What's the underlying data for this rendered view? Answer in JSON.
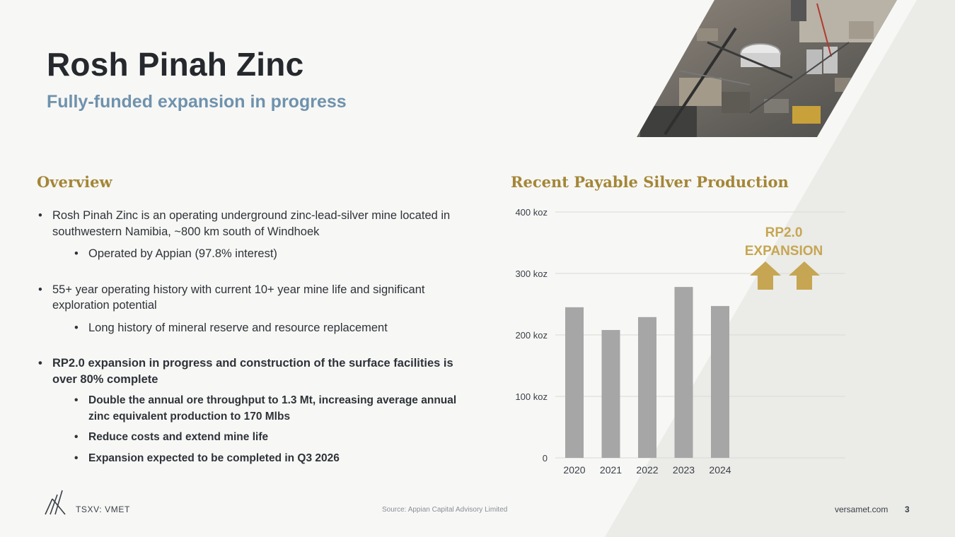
{
  "header": {
    "title": "Rosh Pinah Zinc",
    "subtitle": "Fully-funded expansion in progress"
  },
  "overview": {
    "heading": "Overview",
    "bullets": [
      {
        "text": "Rosh Pinah Zinc is an operating underground zinc-lead-silver mine located in southwestern Namibia, ~800 km south of Windhoek"
      },
      {
        "text": "Operated by Appian (97.8% interest)"
      },
      {
        "text": "55+ year operating history with current 10+ year mine life and significant exploration potential"
      },
      {
        "text": "Long history of mineral reserve and resource replacement"
      },
      {
        "text": "RP2.0 expansion in progress and construction of the surface facilities is over 80% complete"
      },
      {
        "text": "Double the annual ore throughput to 1.3 Mt, increasing average annual zinc equivalent production to 170 Mlbs"
      },
      {
        "text": "Reduce costs and extend mine life"
      },
      {
        "text": "Expansion expected to be completed in Q3 2026"
      }
    ]
  },
  "chart_data": {
    "type": "bar",
    "title": "Recent Payable Silver Production",
    "categories": [
      "2020",
      "2021",
      "2022",
      "2023",
      "2024"
    ],
    "values": [
      245,
      208,
      229,
      278,
      247
    ],
    "unit": "koz",
    "ylim": [
      0,
      400
    ],
    "yticks": [
      0,
      100,
      200,
      300,
      400
    ],
    "ytick_labels": [
      "0",
      "100 koz",
      "200 koz",
      "300 koz",
      "400 koz"
    ],
    "grid": true,
    "bar_color": "#a6a6a6",
    "annotation": {
      "line1": "RP2.0",
      "line2": "EXPANSION",
      "color": "#c6a653",
      "icon": "up-arrow-icon"
    }
  },
  "footer": {
    "ticker": "TSXV: VMET",
    "source": "Source: Appian Capital Advisory Limited",
    "website": "versamet.com",
    "page": "3"
  },
  "colors": {
    "accent_gold": "#a48637",
    "subtitle_blue": "#6f92ad",
    "stripe": "#ebebe8"
  }
}
